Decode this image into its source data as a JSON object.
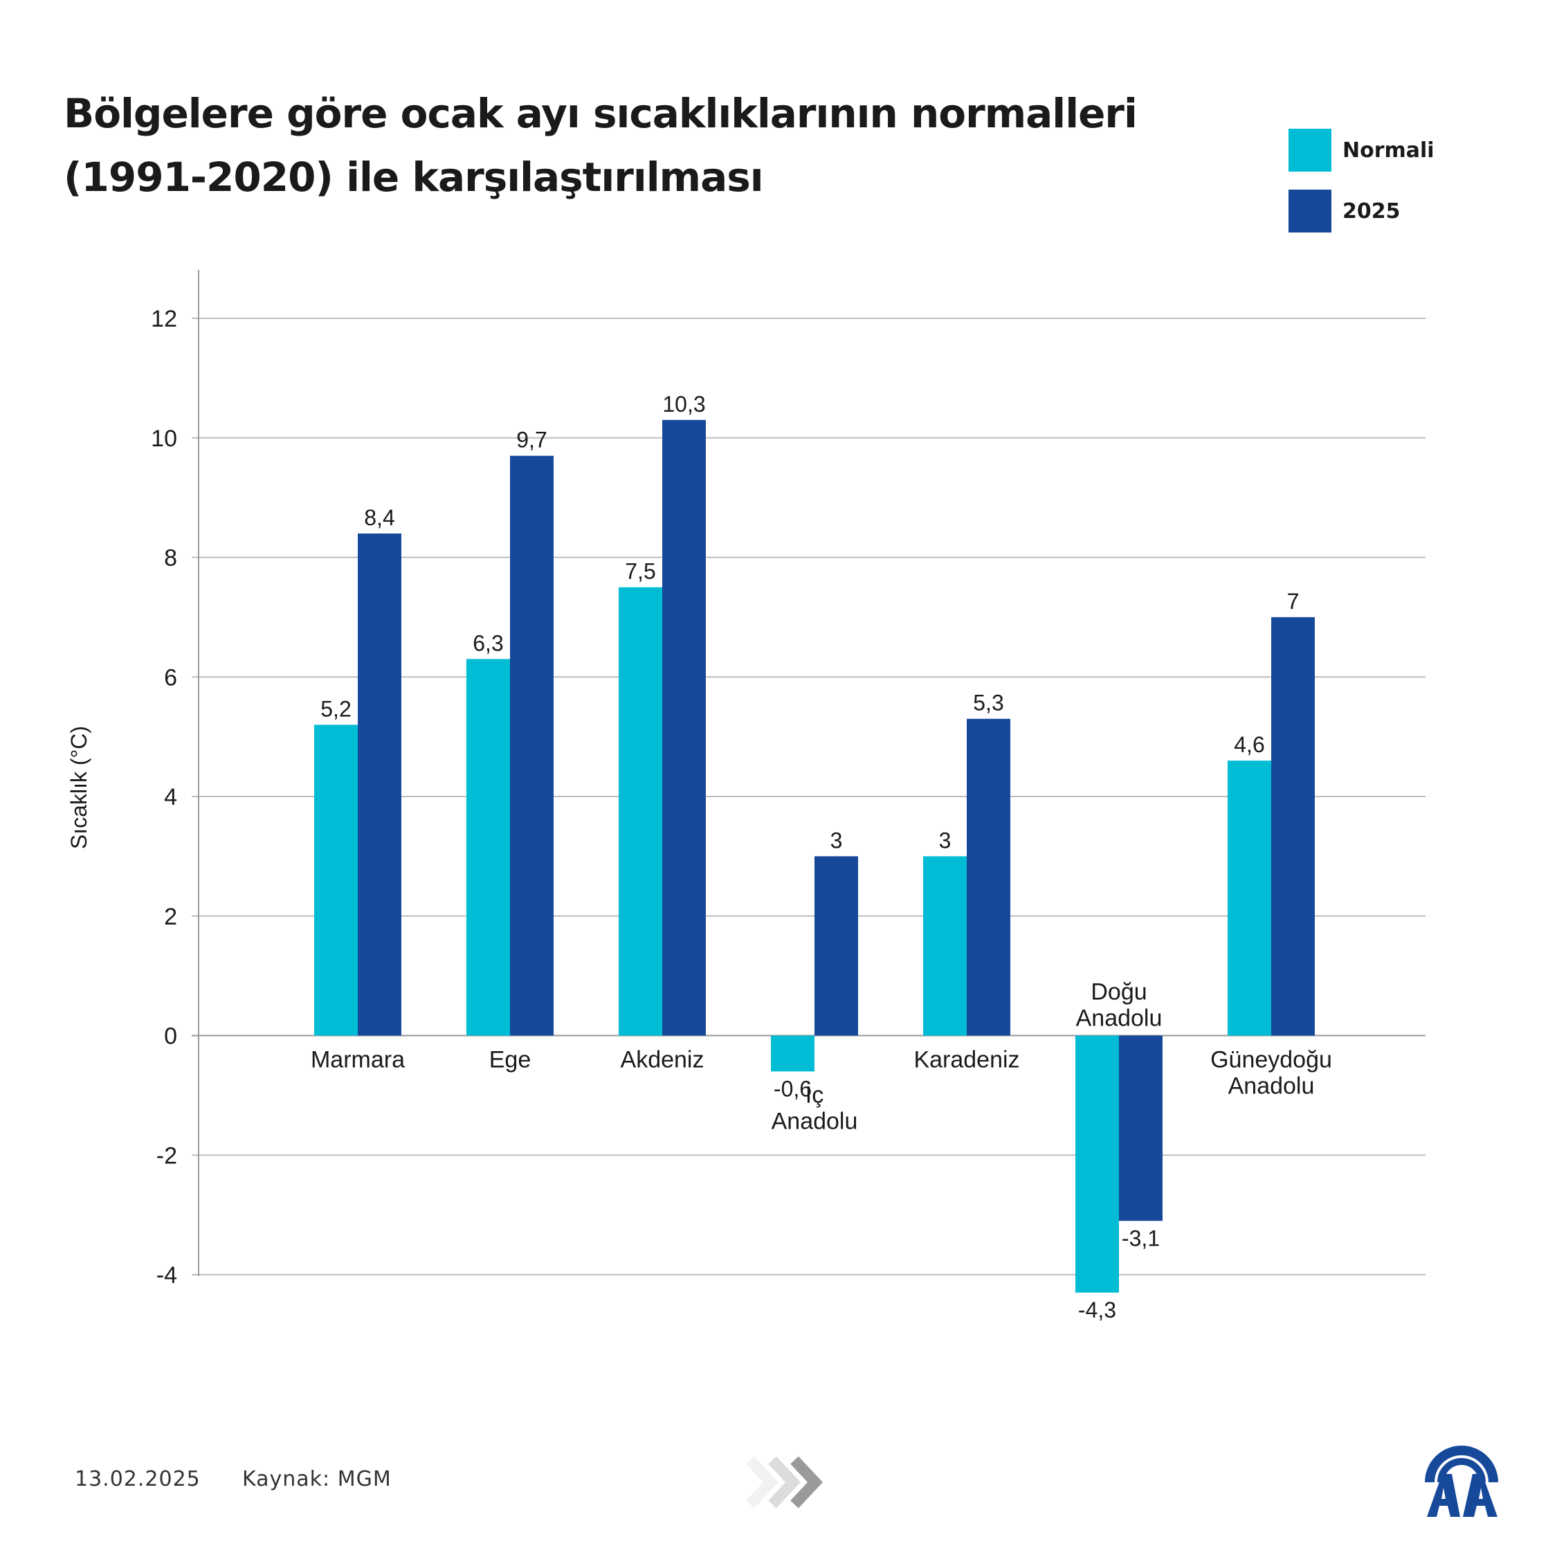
{
  "title_line1": "Bölgelere göre ocak ayı sıcaklıklarının normalleri",
  "title_line2": "(1991-2020) ile karşılaştırılması",
  "legend": [
    {
      "label": "Normali",
      "color": "#00bcd4"
    },
    {
      "label": "2025",
      "color": "#17499b"
    }
  ],
  "footer": {
    "date": "13.02.2025",
    "source": "Kaynak: MGM"
  },
  "logo": {
    "text": "AA",
    "icon": "aa-logo-icon",
    "color": "#17499b"
  },
  "chart_data": {
    "type": "bar",
    "title": "Bölgelere göre ocak ayı sıcaklıklarının normalleri (1991-2020) ile karşılaştırılması",
    "xlabel": "",
    "ylabel": "Sıcaklık (°C)",
    "ylim": [
      -4,
      12
    ],
    "yticks": [
      12,
      10,
      8,
      6,
      4,
      2,
      0,
      -2,
      -4
    ],
    "grid": true,
    "legend_position": "top-right",
    "categories": [
      [
        "Marmara"
      ],
      [
        "Ege"
      ],
      [
        "Akdeniz"
      ],
      [
        "İç",
        "Anadolu"
      ],
      [
        "Karadeniz"
      ],
      [
        "Doğu",
        "Anadolu"
      ],
      [
        "Güneydoğu",
        "Anadolu"
      ]
    ],
    "series": [
      {
        "name": "Normali",
        "color": "#00bcd4",
        "values": [
          5.2,
          6.3,
          7.5,
          -0.6,
          3,
          -4.3,
          4.6
        ],
        "labels": [
          "5,2",
          "6,3",
          "7,5",
          "-0,6",
          "3",
          "-4,3",
          "4,6"
        ]
      },
      {
        "name": "2025",
        "color": "#17499b",
        "values": [
          8.4,
          9.7,
          10.3,
          3,
          5.3,
          -3.1,
          7
        ],
        "labels": [
          "8,4",
          "9,7",
          "10,3",
          "3",
          "5,3",
          "-3,1",
          "7"
        ]
      }
    ]
  }
}
